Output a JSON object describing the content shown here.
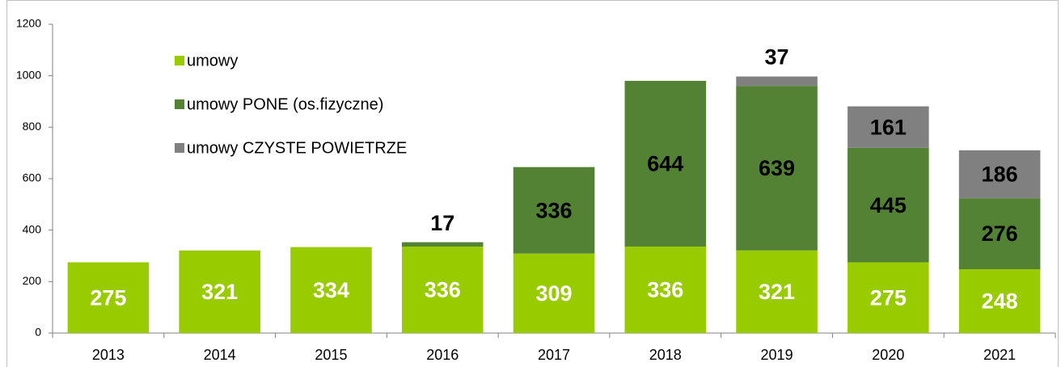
{
  "chart_data": {
    "type": "stacked_bar",
    "categories": [
      "2013",
      "2014",
      "2015",
      "2016",
      "2017",
      "2018",
      "2019",
      "2020",
      "2021"
    ],
    "series": [
      {
        "name": "umowy",
        "color": "#99cc00",
        "values": [
          275,
          321,
          334,
          336,
          309,
          336,
          321,
          275,
          248
        ]
      },
      {
        "name": "umowy PONE (os.fizyczne)",
        "color": "#548235",
        "values": [
          null,
          null,
          null,
          17,
          336,
          644,
          639,
          445,
          276
        ]
      },
      {
        "name": "umowy CZYSTE POWIETRZE",
        "color": "#808080",
        "values": [
          null,
          null,
          null,
          null,
          null,
          null,
          37,
          161,
          186
        ]
      }
    ],
    "ylim": [
      0,
      1200
    ],
    "yticks": [
      0,
      200,
      400,
      600,
      800,
      1000,
      1200
    ],
    "grid": false,
    "legend": "top-left"
  }
}
